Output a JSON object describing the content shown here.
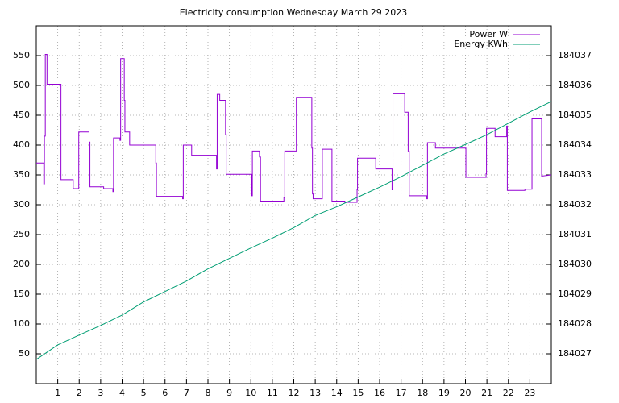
{
  "chart_data": {
    "type": "line",
    "title": "Electricity consumption Wednesday March 29 2023",
    "xlim": [
      0,
      24
    ],
    "xticks": [
      1,
      2,
      3,
      4,
      5,
      6,
      7,
      8,
      9,
      10,
      11,
      12,
      13,
      14,
      15,
      16,
      17,
      18,
      19,
      20,
      21,
      22,
      23
    ],
    "ylim": [
      0,
      600
    ],
    "yticks": [
      50,
      100,
      150,
      200,
      250,
      300,
      350,
      400,
      450,
      500,
      550
    ],
    "y2lim": [
      184026,
      184038
    ],
    "y2ticks": [
      184027,
      184028,
      184029,
      184030,
      184031,
      184032,
      184033,
      184034,
      184035,
      184036,
      184037
    ],
    "grid": true,
    "legend": "top-right",
    "series": [
      {
        "name": "Power W",
        "color": "#9400d3",
        "step": true,
        "x": [
          0,
          0.35,
          0.35,
          0.38,
          0.38,
          0.42,
          0.42,
          0.5,
          0.5,
          1.15,
          1.15,
          1.72,
          1.72,
          1.98,
          1.98,
          2.46,
          2.46,
          2.5,
          2.5,
          3.14,
          3.14,
          3.57,
          3.57,
          3.6,
          3.6,
          3.9,
          3.9,
          3.93,
          3.93,
          4.1,
          4.1,
          4.13,
          4.13,
          4.35,
          4.35,
          5.57,
          5.57,
          5.6,
          5.6,
          6.82,
          6.82,
          6.85,
          6.85,
          7.24,
          7.24,
          8.4,
          8.4,
          8.43,
          8.43,
          8.55,
          8.55,
          8.82,
          8.82,
          8.85,
          8.85,
          10.04,
          10.04,
          10.07,
          10.07,
          10.4,
          10.4,
          10.45,
          10.45,
          11.54,
          11.54,
          11.58,
          11.58,
          12.12,
          12.12,
          12.84,
          12.84,
          12.87,
          12.87,
          12.9,
          12.9,
          13.33,
          13.33,
          13.78,
          13.78,
          14.38,
          14.38,
          14.95,
          14.95,
          14.97,
          14.97,
          15.82,
          15.82,
          16.58,
          16.58,
          16.62,
          16.62,
          17.17,
          17.17,
          17.33,
          17.33,
          17.38,
          17.38,
          18.2,
          18.2,
          18.23,
          18.23,
          18.6,
          18.6,
          20.02,
          20.02,
          20.96,
          20.96,
          20.98,
          20.98,
          21.38,
          21.38,
          21.92,
          21.92,
          21.95,
          21.95,
          22.77,
          22.77,
          23.1,
          23.1,
          23.55,
          23.55,
          24
        ],
        "values": [
          370,
          370,
          335,
          335,
          415,
          415,
          552,
          552,
          502,
          502,
          342,
          342,
          327,
          327,
          422,
          422,
          405,
          405,
          330,
          330,
          327,
          327,
          322,
          322,
          412,
          412,
          408,
          408,
          545,
          545,
          475,
          475,
          422,
          422,
          400,
          400,
          370,
          370,
          314,
          314,
          310,
          310,
          400,
          400,
          383,
          383,
          360,
          360,
          485,
          485,
          475,
          475,
          418,
          418,
          351,
          351,
          315,
          315,
          390,
          390,
          380,
          380,
          306,
          306,
          312,
          312,
          390,
          390,
          480,
          480,
          395,
          395,
          318,
          318,
          310,
          310,
          393,
          393,
          306,
          306,
          304,
          304,
          325,
          325,
          378,
          378,
          360,
          360,
          325,
          325,
          486,
          486,
          455,
          455,
          390,
          390,
          315,
          315,
          310,
          310,
          404,
          404,
          395,
          395,
          346,
          346,
          352,
          352,
          428,
          428,
          414,
          414,
          432,
          432,
          324,
          324,
          326,
          326,
          444,
          444,
          348,
          350
        ]
      },
      {
        "name": "Energy KWh",
        "color": "#009e73",
        "axis": "y2",
        "x": [
          0,
          1,
          2,
          3,
          4,
          5,
          6,
          7,
          8,
          9,
          10,
          11,
          12,
          13,
          14,
          15,
          16,
          17,
          18,
          19,
          20,
          21,
          22,
          23,
          24
        ],
        "values": [
          184026.81,
          184027.3,
          184027.63,
          184027.95,
          184028.3,
          184028.74,
          184029.09,
          184029.44,
          184029.85,
          184030.2,
          184030.55,
          184030.88,
          184031.23,
          184031.64,
          184031.93,
          184032.26,
          184032.59,
          184032.94,
          184033.32,
          184033.7,
          184034.02,
          184034.35,
          184034.73,
          184035.11,
          184035.46
        ]
      }
    ]
  }
}
